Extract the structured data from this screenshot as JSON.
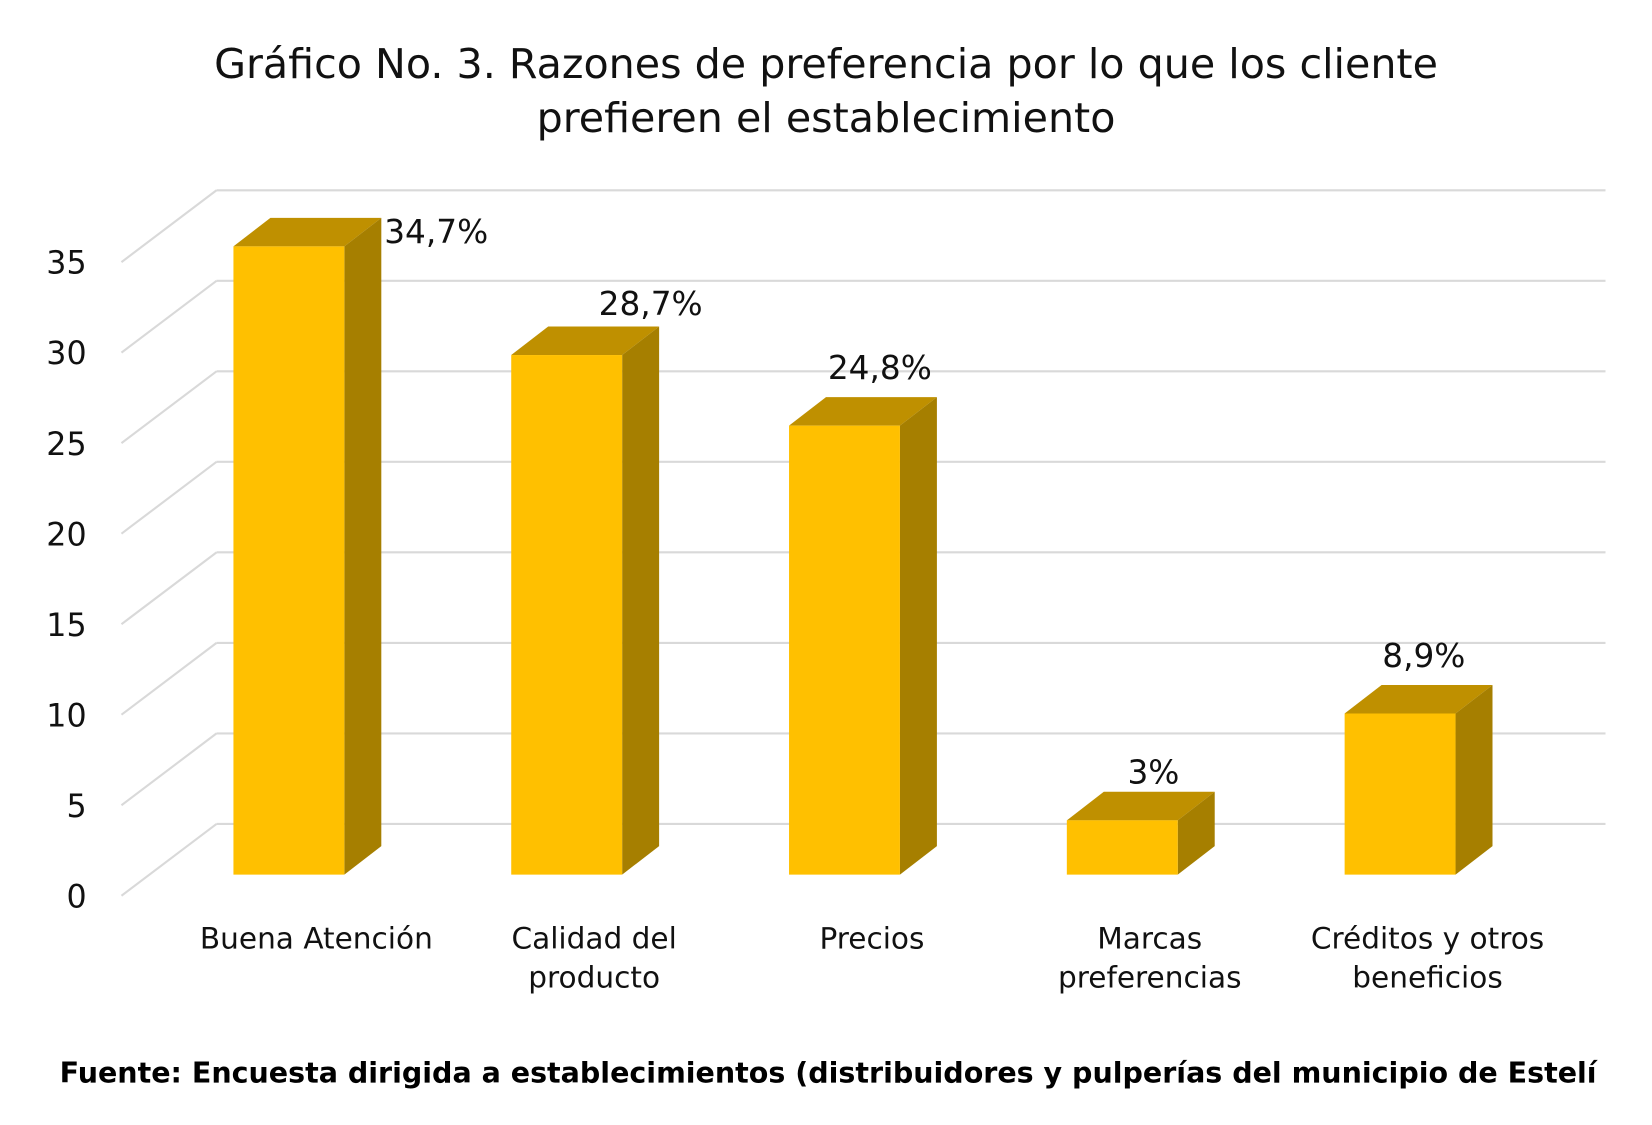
{
  "chart_data": {
    "type": "bar",
    "style": "3d-column",
    "title_lines": [
      "Gráfico No. 3. Razones de preferencia por lo que los cliente",
      "prefieren el establecimiento"
    ],
    "categories": [
      [
        "Buena Atención"
      ],
      [
        "Calidad del",
        "producto"
      ],
      [
        "Precios"
      ],
      [
        "Marcas",
        "preferencias"
      ],
      [
        "Créditos y otros",
        "beneficios"
      ]
    ],
    "values": [
      34.7,
      28.7,
      24.8,
      3,
      8.9
    ],
    "data_labels": [
      "34,7%",
      "28,7%",
      "24,8%",
      "3%",
      "8,9%"
    ],
    "yticks": [
      "0",
      "5",
      "10",
      "15",
      "20",
      "25",
      "30",
      "35"
    ],
    "ylim": [
      0,
      35
    ],
    "grid": true,
    "legend": "none",
    "source": "Fuente: Encuesta dirigida a establecimientos (distribuidores y pulperías del municipio de Estelí",
    "colors": {
      "front": "#FFC000",
      "top": "#BF9000",
      "side": "#A67F00",
      "grid": "#D9D9D9"
    }
  }
}
